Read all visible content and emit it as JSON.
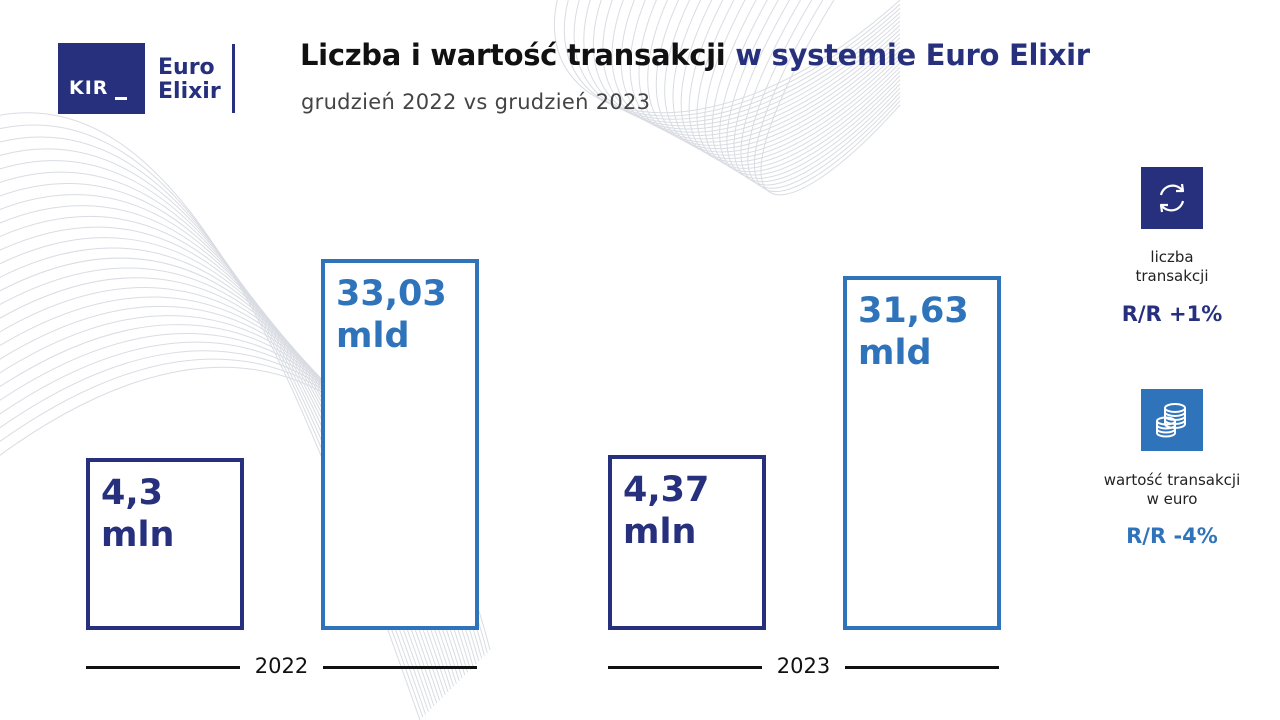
{
  "logo": {
    "kir": "KIR",
    "line1": "Euro",
    "line2": "Elixir"
  },
  "title_part1": "Liczba i wartość transakcji",
  "title_part2": "w systemie Euro Elixir",
  "subtitle": "grudzień 2022 vs grudzień 2023",
  "colors": {
    "navy": "#26307d",
    "blue": "#2f74bb",
    "axis": "#111111"
  },
  "chart_data": {
    "type": "bar",
    "categories": [
      "2022",
      "2023"
    ],
    "series": [
      {
        "values": [
          4.3,
          4.37
        ],
        "unit": "mln",
        "labels": [
          "4,3\nmln",
          "4,37\nmln"
        ],
        "color": "#26307d"
      },
      {
        "values": [
          33.03,
          31.63
        ],
        "unit": "mld",
        "labels": [
          "33,03\nmld",
          "31,63\nmld"
        ],
        "color": "#2f74bb"
      }
    ],
    "grid": false,
    "legend": "right"
  },
  "side": {
    "count": {
      "icon": "refresh-arrows-icon",
      "caption": "liczba\ntransakcji",
      "stat": "R/R +1%",
      "color": "#26307d"
    },
    "value": {
      "icon": "coins-stack-icon",
      "caption": "wartość transakcji\nw euro",
      "stat": "R/R -4%",
      "color": "#2f74bb"
    }
  }
}
